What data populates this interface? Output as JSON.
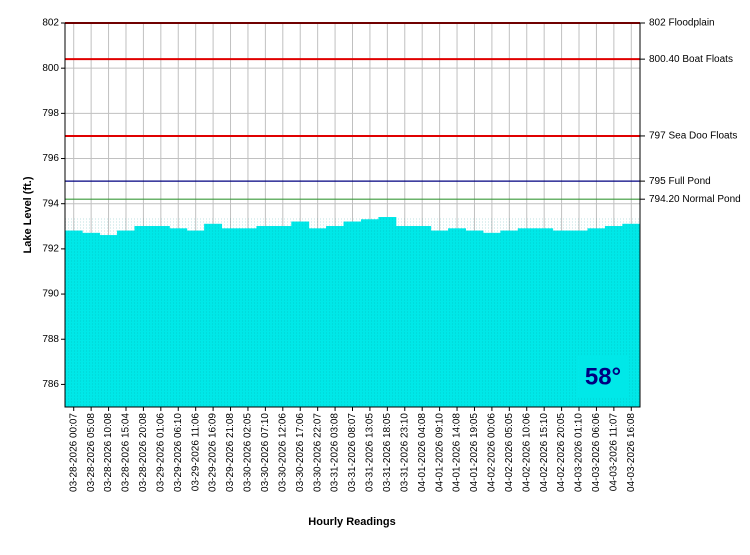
{
  "chart_data": {
    "type": "bar",
    "y_label": "Lake Level (ft.)",
    "x_label": "Hourly Readings",
    "categories": [
      "03-28-2026 00:07",
      "03-28-2026 05:08",
      "03-28-2026 10:08",
      "03-28-2026 15:04",
      "03-28-2026 20:08",
      "03-29-2026 01:06",
      "03-29-2026 06:10",
      "03-29-2026 11:06",
      "03-29-2026 16:09",
      "03-29-2026 21:08",
      "03-30-2026 02:05",
      "03-30-2026 07:10",
      "03-30-2026 12:06",
      "03-30-2026 17:06",
      "03-30-2026 22:07",
      "03-31-2026 03:08",
      "03-31-2026 08:07",
      "03-31-2026 13:05",
      "03-31-2026 18:05",
      "03-31-2026 23:10",
      "04-01-2026 04:08",
      "04-01-2026 09:10",
      "04-01-2026 14:08",
      "04-01-2026 19:05",
      "04-02-2026 00:06",
      "04-02-2026 05:05",
      "04-02-2026 10:06",
      "04-02-2026 15:10",
      "04-02-2026 20:05",
      "04-03-2026 01:10",
      "04-03-2026 06:06",
      "04-03-2026 11:07",
      "04-03-2026 16:08"
    ],
    "values": [
      792.8,
      792.7,
      792.6,
      792.8,
      793.0,
      793.0,
      792.9,
      792.8,
      793.1,
      792.9,
      792.9,
      793.0,
      793.0,
      793.2,
      792.9,
      793.0,
      793.2,
      793.3,
      793.4,
      793.0,
      793.0,
      792.8,
      792.9,
      792.8,
      792.7,
      792.8,
      792.9,
      792.9,
      792.8,
      792.8,
      792.9,
      793.0,
      793.1
    ],
    "color": "#00e8e8",
    "ylim": [
      785,
      802
    ],
    "yticks": [
      786,
      788,
      790,
      792,
      794,
      796,
      798,
      800,
      802
    ],
    "grid": true,
    "references": [
      {
        "value": 802,
        "label": "802 Floodplain",
        "color": "#e00000"
      },
      {
        "value": 800.4,
        "label": "800.40 Boat Floats",
        "color": "#e00000"
      },
      {
        "value": 797,
        "label": "797 Sea Doo Floats",
        "color": "#e00000"
      },
      {
        "value": 795,
        "label": "795 Full Pond",
        "color": "#000080"
      },
      {
        "value": 794.2,
        "label": "794.20 Normal Pond",
        "color": "#3a9a3a"
      }
    ],
    "badge": "58°"
  }
}
